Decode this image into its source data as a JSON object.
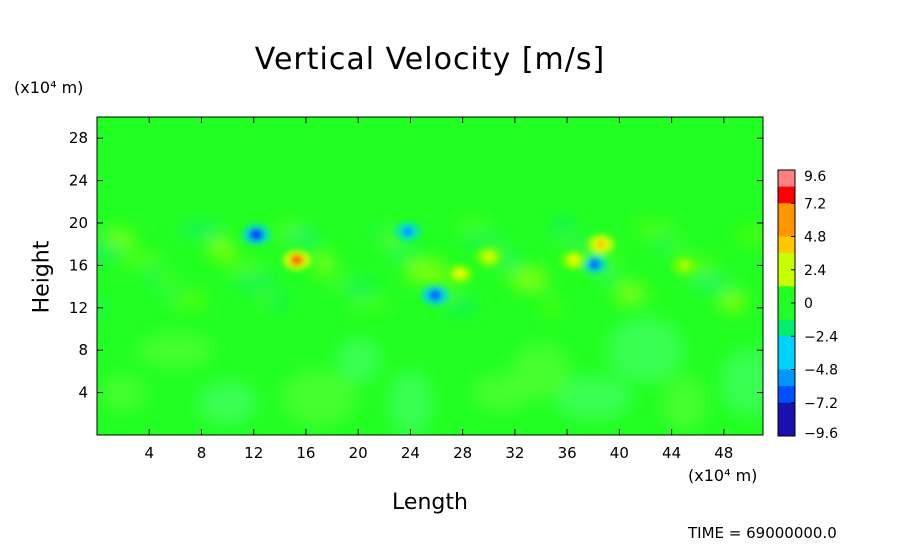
{
  "chart_data": {
    "type": "heatmap",
    "title": "Vertical Velocity [m/s]",
    "xlabel": "Length",
    "ylabel": "Height",
    "x_unit": "(x10⁴ m)",
    "y_unit": "(x10⁴ m)",
    "xlim": [
      0,
      51
    ],
    "ylim": [
      0,
      30
    ],
    "x_ticks": [
      4,
      8,
      12,
      16,
      20,
      24,
      28,
      32,
      36,
      40,
      44,
      48
    ],
    "y_ticks": [
      4,
      8,
      12,
      16,
      20,
      24,
      28
    ],
    "colorbar": {
      "min": -9.6,
      "max": 9.6,
      "tick_labels": [
        "9.6",
        "7.2",
        "4.8",
        "2.4",
        "0",
        "−2.4",
        "−4.8",
        "−7.2",
        "−9.6"
      ],
      "tick_values": [
        9.6,
        7.2,
        4.8,
        2.4,
        0,
        -2.4,
        -4.8,
        -7.2,
        -9.6
      ]
    },
    "features": [
      {
        "x": 15.3,
        "y": 16.5,
        "value": 8.5
      },
      {
        "x": 12.2,
        "y": 18.9,
        "value": -7.5
      },
      {
        "x": 23.8,
        "y": 19.2,
        "value": -5.5
      },
      {
        "x": 25.9,
        "y": 13.2,
        "value": -6.8
      },
      {
        "x": 38.6,
        "y": 18.0,
        "value": 5.5
      },
      {
        "x": 38.1,
        "y": 16.1,
        "value": -6.5
      },
      {
        "x": 27.8,
        "y": 15.2,
        "value": 3.0
      },
      {
        "x": 36.5,
        "y": 16.5,
        "value": 3.5
      },
      {
        "x": 30.0,
        "y": 16.8,
        "value": 2.5
      },
      {
        "x": 45.0,
        "y": 16.0,
        "value": 2.0
      }
    ]
  },
  "footer": {
    "time_text": "TIME = 69000000.0"
  }
}
